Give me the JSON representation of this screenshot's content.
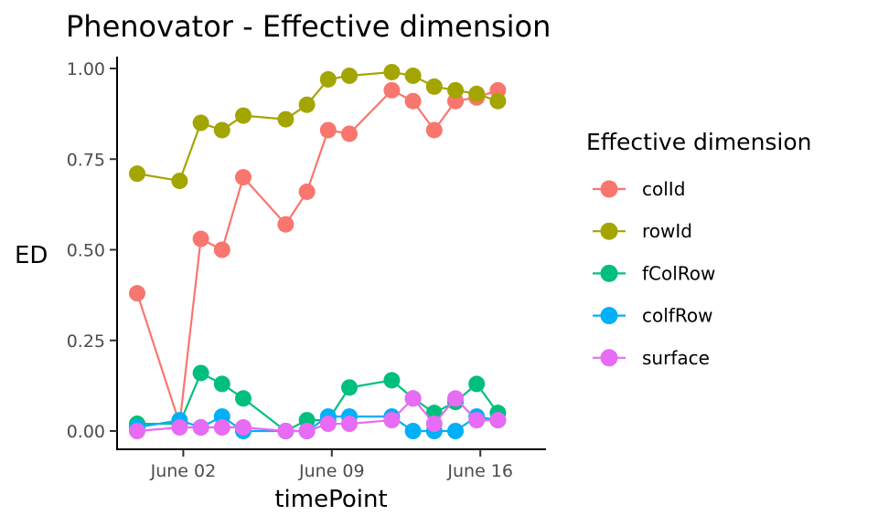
{
  "chart_data": {
    "type": "line",
    "title": "Phenovator - Effective dimension",
    "xlabel": "timePoint",
    "ylabel": "ED",
    "ylim": [
      -0.02,
      1.03
    ],
    "yticks": [
      "0.00",
      "0.25",
      "0.50",
      "0.75",
      "1.00"
    ],
    "ytick_values": [
      0,
      0.25,
      0.5,
      0.75,
      1.0
    ],
    "xlim": [
      "2018-05-30",
      "2018-06-17"
    ],
    "xticks": [
      "June 02",
      "June 09",
      "June 16"
    ],
    "xtick_values": [
      "2018-06-02",
      "2018-06-09",
      "2018-06-16"
    ],
    "x": [
      "2018-05-31",
      "2018-06-02",
      "2018-06-03",
      "2018-06-04",
      "2018-06-05",
      "2018-06-07",
      "2018-06-08",
      "2018-06-09",
      "2018-06-10",
      "2018-06-12",
      "2018-06-13",
      "2018-06-14",
      "2018-06-15",
      "2018-06-16",
      "2018-06-17"
    ],
    "legend_title": "Effective dimension",
    "legend_position": "right",
    "grid": false,
    "series": [
      {
        "name": "colId",
        "color": "#F8766D",
        "values": [
          0.38,
          0.02,
          0.53,
          0.5,
          0.7,
          0.57,
          0.66,
          0.83,
          0.82,
          0.94,
          0.91,
          0.83,
          0.91,
          0.92,
          0.94
        ]
      },
      {
        "name": "rowId",
        "color": "#A3A500",
        "values": [
          0.71,
          0.69,
          0.85,
          0.83,
          0.87,
          0.86,
          0.9,
          0.97,
          0.98,
          0.99,
          0.98,
          0.95,
          0.94,
          0.93,
          0.91
        ]
      },
      {
        "name": "fColRow",
        "color": "#00BF7D",
        "values": [
          0.02,
          0.02,
          0.16,
          0.13,
          0.09,
          0.0,
          0.03,
          0.03,
          0.12,
          0.14,
          0.09,
          0.05,
          0.08,
          0.13,
          0.05
        ]
      },
      {
        "name": "colfRow",
        "color": "#00B0F6",
        "values": [
          0.01,
          0.03,
          0.01,
          0.04,
          0.0,
          0.0,
          0.0,
          0.04,
          0.04,
          0.04,
          0.0,
          0.0,
          0.0,
          0.04,
          0.03
        ]
      },
      {
        "name": "surface",
        "color": "#E76BF3",
        "values": [
          0.0,
          0.01,
          0.01,
          0.01,
          0.01,
          0.0,
          0.0,
          0.02,
          0.02,
          0.03,
          0.09,
          0.02,
          0.09,
          0.03,
          0.03
        ]
      }
    ]
  }
}
